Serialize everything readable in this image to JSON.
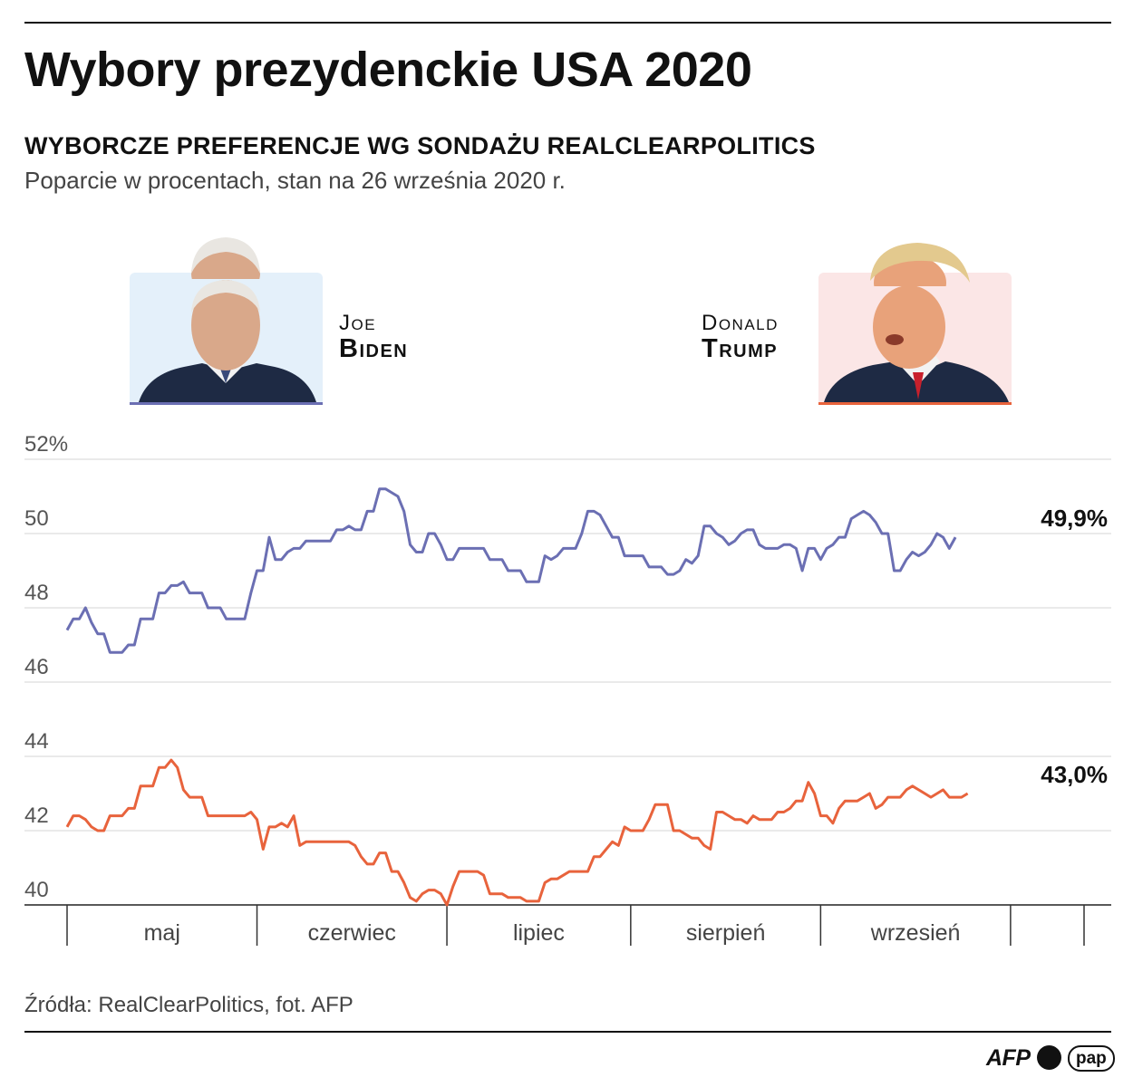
{
  "title": "Wybory prezydenckie USA 2020",
  "subtitle": "WYBORCZE PREFERENCJE WG SONDAŻU REALCLEARPOLITICS",
  "description": "Poparcie w procentach, stan na 26 września 2020 r.",
  "candidates": {
    "biden": {
      "first": "Joe",
      "last": "Biden",
      "color": "#6b6fb3"
    },
    "trump": {
      "first": "Donald",
      "last": "Trump",
      "color": "#e8633c"
    }
  },
  "source": "Źródła: RealClearPolitics, fot. AFP",
  "logos": {
    "afp": "AFP",
    "pap": "pap"
  },
  "chart_data": {
    "type": "line",
    "title": "Wyborcze preferencje wg sondażu RealClearPolitics",
    "ylabel": "Poparcie w procentach",
    "ylim": [
      40,
      52
    ],
    "y_ticks": [
      {
        "value": 52,
        "label": "52%"
      },
      {
        "value": 50,
        "label": "50"
      },
      {
        "value": 48,
        "label": "48"
      },
      {
        "value": 46,
        "label": "46"
      },
      {
        "value": 44,
        "label": "44"
      },
      {
        "value": 42,
        "label": "42"
      },
      {
        "value": 40,
        "label": "40"
      }
    ],
    "grid": true,
    "x_unit": "day index (0 = ~25 kwietnia, 153 = 26 września)",
    "months": [
      "maj",
      "czerwiec",
      "lipiec",
      "sierpień",
      "wrzesień"
    ],
    "month_boundaries": [
      0,
      31,
      62,
      92,
      123,
      154,
      166
    ],
    "series": [
      {
        "name": "Joe Biden",
        "color": "#6b6fb3",
        "end_label": "49,9%",
        "points": [
          [
            0,
            47.4
          ],
          [
            1,
            47.7
          ],
          [
            2,
            47.7
          ],
          [
            3,
            48.0
          ],
          [
            4,
            47.6
          ],
          [
            5,
            47.3
          ],
          [
            6,
            47.3
          ],
          [
            7,
            46.8
          ],
          [
            8,
            46.8
          ],
          [
            9,
            46.8
          ],
          [
            10,
            47.0
          ],
          [
            11,
            47.0
          ],
          [
            12,
            47.7
          ],
          [
            13,
            47.7
          ],
          [
            14,
            47.7
          ],
          [
            15,
            48.4
          ],
          [
            16,
            48.4
          ],
          [
            17,
            48.6
          ],
          [
            18,
            48.6
          ],
          [
            19,
            48.7
          ],
          [
            20,
            48.4
          ],
          [
            21,
            48.4
          ],
          [
            22,
            48.4
          ],
          [
            23,
            48.0
          ],
          [
            24,
            48.0
          ],
          [
            25,
            48.0
          ],
          [
            26,
            47.7
          ],
          [
            27,
            47.7
          ],
          [
            28,
            47.7
          ],
          [
            29,
            47.7
          ],
          [
            30,
            48.4
          ],
          [
            31,
            49.0
          ],
          [
            32,
            49.0
          ],
          [
            33,
            49.9
          ],
          [
            34,
            49.3
          ],
          [
            35,
            49.3
          ],
          [
            36,
            49.5
          ],
          [
            37,
            49.6
          ],
          [
            38,
            49.6
          ],
          [
            39,
            49.8
          ],
          [
            40,
            49.8
          ],
          [
            41,
            49.8
          ],
          [
            42,
            49.8
          ],
          [
            43,
            49.8
          ],
          [
            44,
            50.1
          ],
          [
            45,
            50.1
          ],
          [
            46,
            50.2
          ],
          [
            47,
            50.1
          ],
          [
            48,
            50.1
          ],
          [
            49,
            50.6
          ],
          [
            50,
            50.6
          ],
          [
            51,
            51.2
          ],
          [
            52,
            51.2
          ],
          [
            53,
            51.1
          ],
          [
            54,
            51.0
          ],
          [
            55,
            50.6
          ],
          [
            56,
            49.7
          ],
          [
            57,
            49.5
          ],
          [
            58,
            49.5
          ],
          [
            59,
            50.0
          ],
          [
            60,
            50.0
          ],
          [
            61,
            49.7
          ],
          [
            62,
            49.3
          ],
          [
            63,
            49.3
          ],
          [
            64,
            49.6
          ],
          [
            65,
            49.6
          ],
          [
            66,
            49.6
          ],
          [
            67,
            49.6
          ],
          [
            68,
            49.6
          ],
          [
            69,
            49.3
          ],
          [
            70,
            49.3
          ],
          [
            71,
            49.3
          ],
          [
            72,
            49.0
          ],
          [
            73,
            49.0
          ],
          [
            74,
            49.0
          ],
          [
            75,
            48.7
          ],
          [
            76,
            48.7
          ],
          [
            77,
            48.7
          ],
          [
            78,
            49.4
          ],
          [
            79,
            49.3
          ],
          [
            80,
            49.4
          ],
          [
            81,
            49.6
          ],
          [
            82,
            49.6
          ],
          [
            83,
            49.6
          ],
          [
            84,
            50.0
          ],
          [
            85,
            50.6
          ],
          [
            86,
            50.6
          ],
          [
            87,
            50.5
          ],
          [
            88,
            50.2
          ],
          [
            89,
            49.9
          ],
          [
            90,
            49.9
          ],
          [
            91,
            49.4
          ],
          [
            92,
            49.4
          ],
          [
            93,
            49.4
          ],
          [
            94,
            49.4
          ],
          [
            95,
            49.1
          ],
          [
            96,
            49.1
          ],
          [
            97,
            49.1
          ],
          [
            98,
            48.9
          ],
          [
            99,
            48.9
          ],
          [
            100,
            49.0
          ],
          [
            101,
            49.3
          ],
          [
            102,
            49.2
          ],
          [
            103,
            49.4
          ],
          [
            104,
            50.2
          ],
          [
            105,
            50.2
          ],
          [
            106,
            50.0
          ],
          [
            107,
            49.9
          ],
          [
            108,
            49.7
          ],
          [
            109,
            49.8
          ],
          [
            110,
            50.0
          ],
          [
            111,
            50.1
          ],
          [
            112,
            50.1
          ],
          [
            113,
            49.7
          ],
          [
            114,
            49.6
          ],
          [
            115,
            49.6
          ],
          [
            116,
            49.6
          ],
          [
            117,
            49.7
          ],
          [
            118,
            49.7
          ],
          [
            119,
            49.6
          ],
          [
            120,
            49.0
          ],
          [
            121,
            49.6
          ],
          [
            122,
            49.6
          ],
          [
            123,
            49.3
          ],
          [
            124,
            49.6
          ],
          [
            125,
            49.7
          ],
          [
            126,
            49.9
          ],
          [
            127,
            49.9
          ],
          [
            128,
            50.4
          ],
          [
            129,
            50.5
          ],
          [
            130,
            50.6
          ],
          [
            131,
            50.5
          ],
          [
            132,
            50.3
          ],
          [
            133,
            50.0
          ],
          [
            134,
            50.0
          ],
          [
            135,
            49.0
          ],
          [
            136,
            49.0
          ],
          [
            137,
            49.3
          ],
          [
            138,
            49.5
          ],
          [
            139,
            49.4
          ],
          [
            140,
            49.5
          ],
          [
            141,
            49.7
          ],
          [
            142,
            50.0
          ],
          [
            143,
            49.9
          ],
          [
            144,
            49.6
          ],
          [
            145,
            49.9
          ]
        ]
      },
      {
        "name": "Donald Trump",
        "color": "#e8633c",
        "end_label": "43,0%",
        "points": [
          [
            0,
            42.1
          ],
          [
            1,
            42.4
          ],
          [
            2,
            42.4
          ],
          [
            3,
            42.3
          ],
          [
            4,
            42.1
          ],
          [
            5,
            42.0
          ],
          [
            6,
            42.0
          ],
          [
            7,
            42.4
          ],
          [
            8,
            42.4
          ],
          [
            9,
            42.4
          ],
          [
            10,
            42.6
          ],
          [
            11,
            42.6
          ],
          [
            12,
            43.2
          ],
          [
            13,
            43.2
          ],
          [
            14,
            43.2
          ],
          [
            15,
            43.7
          ],
          [
            16,
            43.7
          ],
          [
            17,
            43.9
          ],
          [
            18,
            43.7
          ],
          [
            19,
            43.1
          ],
          [
            20,
            42.9
          ],
          [
            21,
            42.9
          ],
          [
            22,
            42.9
          ],
          [
            23,
            42.4
          ],
          [
            24,
            42.4
          ],
          [
            25,
            42.4
          ],
          [
            26,
            42.4
          ],
          [
            27,
            42.4
          ],
          [
            28,
            42.4
          ],
          [
            29,
            42.4
          ],
          [
            30,
            42.5
          ],
          [
            31,
            42.3
          ],
          [
            32,
            41.5
          ],
          [
            33,
            42.1
          ],
          [
            34,
            42.1
          ],
          [
            35,
            42.2
          ],
          [
            36,
            42.1
          ],
          [
            37,
            42.4
          ],
          [
            38,
            41.6
          ],
          [
            39,
            41.7
          ],
          [
            40,
            41.7
          ],
          [
            41,
            41.7
          ],
          [
            42,
            41.7
          ],
          [
            43,
            41.7
          ],
          [
            44,
            41.7
          ],
          [
            45,
            41.7
          ],
          [
            46,
            41.7
          ],
          [
            47,
            41.6
          ],
          [
            48,
            41.3
          ],
          [
            49,
            41.1
          ],
          [
            50,
            41.1
          ],
          [
            51,
            41.4
          ],
          [
            52,
            41.4
          ],
          [
            53,
            40.9
          ],
          [
            54,
            40.9
          ],
          [
            55,
            40.6
          ],
          [
            56,
            40.2
          ],
          [
            57,
            40.1
          ],
          [
            58,
            40.3
          ],
          [
            59,
            40.4
          ],
          [
            60,
            40.4
          ],
          [
            61,
            40.3
          ],
          [
            62,
            40.0
          ],
          [
            63,
            40.5
          ],
          [
            64,
            40.9
          ],
          [
            65,
            40.9
          ],
          [
            66,
            40.9
          ],
          [
            67,
            40.9
          ],
          [
            68,
            40.8
          ],
          [
            69,
            40.3
          ],
          [
            70,
            40.3
          ],
          [
            71,
            40.3
          ],
          [
            72,
            40.2
          ],
          [
            73,
            40.2
          ],
          [
            74,
            40.2
          ],
          [
            75,
            40.1
          ],
          [
            76,
            40.1
          ],
          [
            77,
            40.1
          ],
          [
            78,
            40.6
          ],
          [
            79,
            40.7
          ],
          [
            80,
            40.7
          ],
          [
            81,
            40.8
          ],
          [
            82,
            40.9
          ],
          [
            83,
            40.9
          ],
          [
            84,
            40.9
          ],
          [
            85,
            40.9
          ],
          [
            86,
            41.3
          ],
          [
            87,
            41.3
          ],
          [
            88,
            41.5
          ],
          [
            89,
            41.7
          ],
          [
            90,
            41.6
          ],
          [
            91,
            42.1
          ],
          [
            92,
            42.0
          ],
          [
            93,
            42.0
          ],
          [
            94,
            42.0
          ],
          [
            95,
            42.3
          ],
          [
            96,
            42.7
          ],
          [
            97,
            42.7
          ],
          [
            98,
            42.7
          ],
          [
            99,
            42.0
          ],
          [
            100,
            42.0
          ],
          [
            101,
            41.9
          ],
          [
            102,
            41.8
          ],
          [
            103,
            41.8
          ],
          [
            104,
            41.6
          ],
          [
            105,
            41.5
          ],
          [
            106,
            42.5
          ],
          [
            107,
            42.5
          ],
          [
            108,
            42.4
          ],
          [
            109,
            42.3
          ],
          [
            110,
            42.3
          ],
          [
            111,
            42.2
          ],
          [
            112,
            42.4
          ],
          [
            113,
            42.3
          ],
          [
            114,
            42.3
          ],
          [
            115,
            42.3
          ],
          [
            116,
            42.5
          ],
          [
            117,
            42.5
          ],
          [
            118,
            42.6
          ],
          [
            119,
            42.8
          ],
          [
            120,
            42.8
          ],
          [
            121,
            43.3
          ],
          [
            122,
            43.0
          ],
          [
            123,
            42.4
          ],
          [
            124,
            42.4
          ],
          [
            125,
            42.2
          ],
          [
            126,
            42.6
          ],
          [
            127,
            42.8
          ],
          [
            128,
            42.8
          ],
          [
            129,
            42.8
          ],
          [
            130,
            42.9
          ],
          [
            131,
            43.0
          ],
          [
            132,
            42.6
          ],
          [
            133,
            42.7
          ],
          [
            134,
            42.9
          ],
          [
            135,
            42.9
          ],
          [
            136,
            42.9
          ],
          [
            137,
            43.1
          ],
          [
            138,
            43.2
          ],
          [
            139,
            43.1
          ],
          [
            140,
            43.0
          ],
          [
            141,
            42.9
          ],
          [
            142,
            43.0
          ],
          [
            143,
            43.1
          ],
          [
            144,
            42.9
          ],
          [
            145,
            42.9
          ],
          [
            146,
            42.9
          ],
          [
            147,
            43.0
          ]
        ]
      }
    ]
  }
}
